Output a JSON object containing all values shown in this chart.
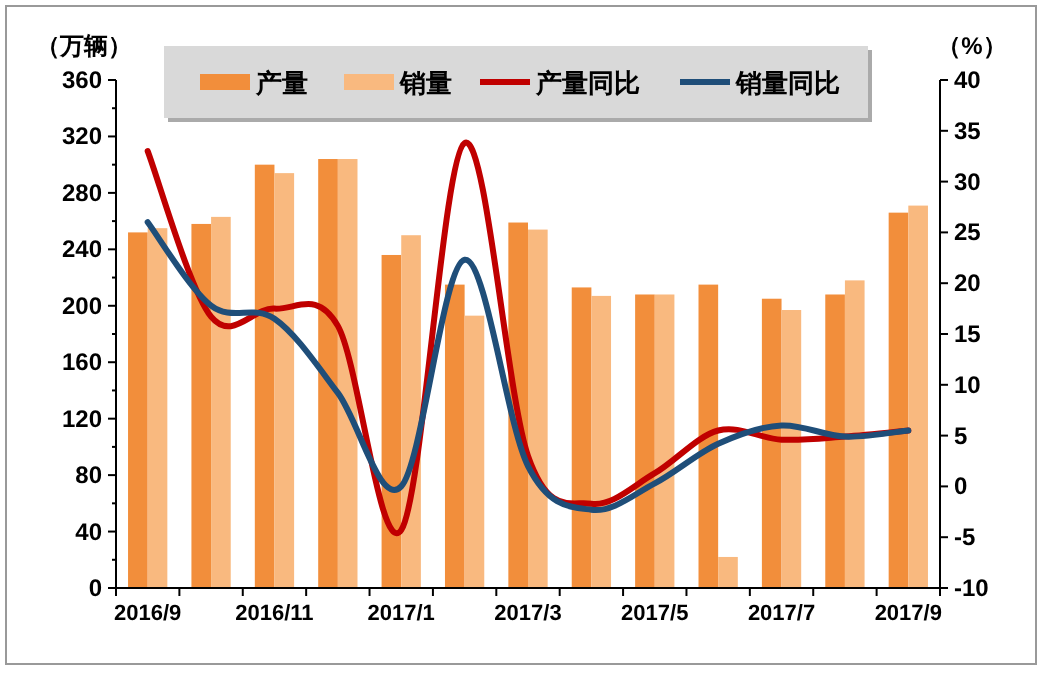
{
  "chart_data": {
    "type": "bar",
    "ylabel": "（万辆）",
    "y2label": "（%）",
    "categories": [
      "2016/9",
      null,
      "2016/11",
      null,
      "2017/1",
      null,
      "2017/3",
      null,
      "2017/5",
      null,
      "2017/7",
      null,
      "2017/9"
    ],
    "series": [
      {
        "name": "产量",
        "color": "#f28e3b",
        "values": [
          252,
          258,
          300,
          304,
          236,
          215,
          259,
          213,
          208,
          215,
          205,
          208,
          266
        ]
      },
      {
        "name": "销量",
        "color": "#f9b97f",
        "values": [
          255,
          263,
          294,
          304,
          250,
          193,
          254,
          207,
          208,
          22,
          197,
          218,
          271
        ]
      },
      {
        "name": "产量同比",
        "type": "line",
        "axis": "y2",
        "color": "#c00000",
        "values": [
          33,
          16.7,
          17.5,
          15.8,
          -4.3,
          33.8,
          3,
          -1.7,
          1.3,
          5.5,
          4.6,
          4.9,
          5.5
        ]
      },
      {
        "name": "销量同比",
        "type": "line",
        "axis": "y2",
        "color": "#1f4e79",
        "values": [
          26,
          17.8,
          16.5,
          9.2,
          0,
          22.3,
          2,
          -2.3,
          0.3,
          4.2,
          6,
          4.9,
          5.5
        ]
      }
    ],
    "ylim": [
      0,
      360
    ],
    "yticks": [
      0,
      40,
      80,
      120,
      160,
      200,
      240,
      280,
      320,
      360
    ],
    "y2lim": [
      -10,
      40
    ],
    "y2ticks": [
      -10,
      -5,
      0,
      5,
      10,
      15,
      20,
      25,
      30,
      35,
      40
    ],
    "grid": false,
    "legend": "top"
  }
}
